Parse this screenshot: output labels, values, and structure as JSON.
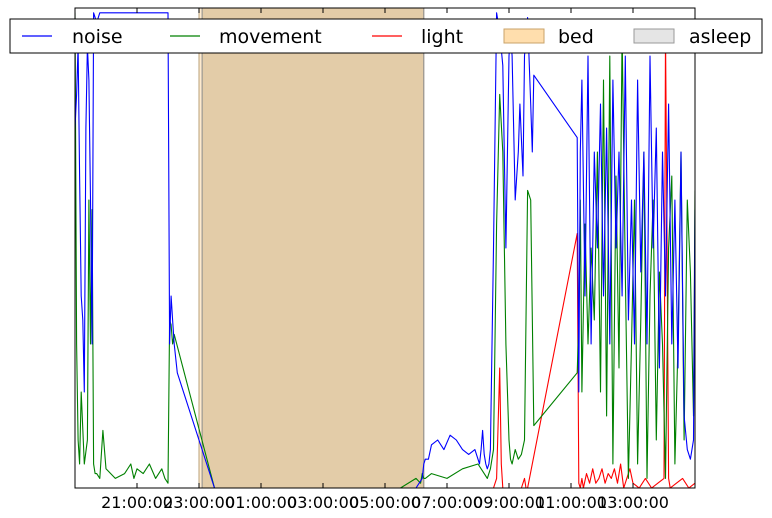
{
  "chart_data": {
    "type": "line",
    "title": "",
    "xlabel": "",
    "ylabel": "",
    "x_ticks": [
      "21:00:00",
      "23:00:00",
      "01:00:00",
      "03:00:00",
      "05:00:00",
      "07:00:00",
      "09:00:00",
      "11:00:00",
      "13:00:00"
    ],
    "x_range_hours": [
      19.0,
      39.0
    ],
    "y_range": [
      0,
      1
    ],
    "grid": false,
    "legend": {
      "placement": "top",
      "entries": [
        "noise",
        "movement",
        "light",
        "bed",
        "asleep"
      ]
    },
    "colors": {
      "noise": "#0000ff",
      "movement": "#008000",
      "light": "#ff0000",
      "bed": "#ffdead",
      "asleep": "#bfbfbf",
      "bed_overlap": "#e3cca8"
    },
    "spans": [
      {
        "name": "bed",
        "start": 23.0,
        "end": 30.25
      },
      {
        "name": "asleep",
        "start": 23.1,
        "end": 30.25
      }
    ],
    "series": [
      {
        "name": "noise",
        "x": [
          19.0,
          19.05,
          19.1,
          19.15,
          19.2,
          19.25,
          19.3,
          19.35,
          19.4,
          19.45,
          19.5,
          19.55,
          19.6,
          19.7,
          19.8,
          19.9,
          20.0,
          20.5,
          21.0,
          21.6,
          21.7,
          21.8,
          21.9,
          21.95,
          22.0,
          22.05,
          22.1,
          22.15,
          22.2,
          22.3,
          23.5,
          24.0,
          26.0,
          28.0,
          29.5,
          29.8,
          30.0,
          30.2,
          30.25,
          30.3,
          30.4,
          30.5,
          30.7,
          30.9,
          31.1,
          31.3,
          31.5,
          31.7,
          31.9,
          32.0,
          32.05,
          32.1,
          32.15,
          32.2,
          32.25,
          32.3,
          32.35,
          32.4,
          32.5,
          32.6,
          32.7,
          32.8,
          32.9,
          33.0,
          33.05,
          33.1,
          33.2,
          33.3,
          33.35,
          33.45,
          33.5,
          33.6,
          33.7,
          33.75,
          33.8,
          35.2,
          35.25,
          35.3,
          35.35,
          35.45,
          35.55,
          35.65,
          35.75,
          35.85,
          35.95,
          36.05,
          36.15,
          36.25,
          36.35,
          36.45,
          36.55,
          36.65,
          36.75,
          36.85,
          36.95,
          37.05,
          37.15,
          37.25,
          37.35,
          37.45,
          37.55,
          37.65,
          37.75,
          37.85,
          37.95,
          38.05,
          38.15,
          38.25,
          38.35,
          38.45,
          38.55,
          38.65,
          38.75,
          38.85,
          38.95,
          39.0
        ],
        "y": [
          0.75,
          0.82,
          0.92,
          0.65,
          0.4,
          0.35,
          0.2,
          0.75,
          0.92,
          0.85,
          0.6,
          0.3,
          0.99,
          0.97,
          0.99,
          0.99,
          0.99,
          0.99,
          0.99,
          0.99,
          0.99,
          0.99,
          0.99,
          0.99,
          0.99,
          0.3,
          0.4,
          0.35,
          0.3,
          0.24,
          0.0,
          0.0,
          0.0,
          0.0,
          0.0,
          0.0,
          0.0,
          0.02,
          0.05,
          0.06,
          0.06,
          0.09,
          0.1,
          0.08,
          0.11,
          0.1,
          0.08,
          0.07,
          0.08,
          0.06,
          0.05,
          0.08,
          0.12,
          0.07,
          0.05,
          0.04,
          0.05,
          0.08,
          0.5,
          0.99,
          0.95,
          0.88,
          0.5,
          0.9,
          0.95,
          0.9,
          0.6,
          0.7,
          0.8,
          0.65,
          0.9,
          0.98,
          0.8,
          0.7,
          0.86,
          0.73,
          0.2,
          0.7,
          0.85,
          0.4,
          0.9,
          0.3,
          0.7,
          0.5,
          0.8,
          0.4,
          0.75,
          0.3,
          0.85,
          0.5,
          0.7,
          0.4,
          0.9,
          0.35,
          0.6,
          0.3,
          0.85,
          0.45,
          0.7,
          0.3,
          0.9,
          0.5,
          0.75,
          0.25,
          0.7,
          0.4,
          0.8,
          0.3,
          0.6,
          0.25,
          0.7,
          0.15,
          0.08,
          0.06,
          0.1,
          0.58
        ]
      },
      {
        "name": "movement",
        "x": [
          19.0,
          19.05,
          19.1,
          19.15,
          19.2,
          19.3,
          19.4,
          19.45,
          19.5,
          19.55,
          19.6,
          19.65,
          19.7,
          19.8,
          19.9,
          20.0,
          20.3,
          20.6,
          20.8,
          20.9,
          21.0,
          21.2,
          21.4,
          21.6,
          21.8,
          21.9,
          22.0,
          22.05,
          22.1,
          22.15,
          22.2,
          23.5,
          24.0,
          26.0,
          28.0,
          29.5,
          30.0,
          30.15,
          30.2,
          30.25,
          30.3,
          30.5,
          31.0,
          31.5,
          32.0,
          32.2,
          32.3,
          32.4,
          32.5,
          32.6,
          32.7,
          32.8,
          32.9,
          33.0,
          33.05,
          33.1,
          33.2,
          33.3,
          33.4,
          33.5,
          33.6,
          33.7,
          33.8,
          35.2,
          35.25,
          35.3,
          35.35,
          35.45,
          35.55,
          35.65,
          35.75,
          35.85,
          35.95,
          36.05,
          36.15,
          36.25,
          36.35,
          36.45,
          36.55,
          36.65,
          36.75,
          36.85,
          36.95,
          37.05,
          37.15,
          37.25,
          37.35,
          37.45,
          37.55,
          37.65,
          37.75,
          37.85,
          37.95,
          38.05,
          38.15,
          38.25,
          38.35,
          38.45,
          38.55,
          38.65,
          38.75,
          38.85,
          38.95,
          39.0
        ],
        "y": [
          0.99,
          0.3,
          0.1,
          0.05,
          0.2,
          0.05,
          0.1,
          0.6,
          0.3,
          0.58,
          0.05,
          0.03,
          0.03,
          0.02,
          0.12,
          0.04,
          0.02,
          0.03,
          0.05,
          0.02,
          0.04,
          0.03,
          0.05,
          0.02,
          0.04,
          0.02,
          0.01,
          0.35,
          0.34,
          0.3,
          0.32,
          0.0,
          0.0,
          0.0,
          0.0,
          0.0,
          0.02,
          0.01,
          0.03,
          0.02,
          0.02,
          0.03,
          0.02,
          0.04,
          0.05,
          0.03,
          0.02,
          0.04,
          0.08,
          0.55,
          0.82,
          0.7,
          0.3,
          0.1,
          0.06,
          0.05,
          0.08,
          0.06,
          0.07,
          0.1,
          0.62,
          0.6,
          0.13,
          0.24,
          0.35,
          0.6,
          0.2,
          0.55,
          0.3,
          0.5,
          0.35,
          0.7,
          0.2,
          0.85,
          0.15,
          0.9,
          0.05,
          0.65,
          0.25,
          0.95,
          0.45,
          0.02,
          0.3,
          0.6,
          0.05,
          0.35,
          0.7,
          0.02,
          0.4,
          0.6,
          0.1,
          0.45,
          0.3,
          0.02,
          0.5,
          0.65,
          0.05,
          0.3,
          0.7,
          0.1,
          0.6,
          0.45,
          0.15,
          0.62
        ]
      },
      {
        "name": "light",
        "x": [
          32.5,
          32.6,
          32.7,
          32.75,
          32.8,
          33.4,
          33.5,
          33.55,
          33.6,
          35.2,
          35.25,
          35.3,
          35.35,
          35.4,
          35.5,
          35.6,
          35.7,
          35.8,
          35.9,
          36.0,
          36.1,
          36.2,
          36.3,
          36.4,
          36.5,
          36.6,
          36.7,
          36.8,
          36.9,
          37.0,
          37.2,
          37.4,
          37.6,
          37.8,
          38.0,
          38.05,
          38.1,
          38.15,
          38.2,
          38.4,
          38.6,
          38.8,
          39.0
        ],
        "y": [
          0.0,
          0.02,
          0.25,
          0.05,
          0.0,
          0.0,
          0.02,
          0.0,
          0.0,
          0.53,
          0.01,
          0.0,
          0.02,
          0.0,
          0.03,
          0.01,
          0.04,
          0.01,
          0.02,
          0.04,
          0.01,
          0.03,
          0.02,
          0.04,
          0.01,
          0.05,
          0.0,
          0.02,
          0.04,
          0.01,
          0.0,
          0.02,
          0.0,
          0.01,
          0.02,
          0.95,
          0.5,
          0.02,
          0.0,
          0.01,
          0.02,
          0.0,
          0.01
        ]
      }
    ]
  }
}
